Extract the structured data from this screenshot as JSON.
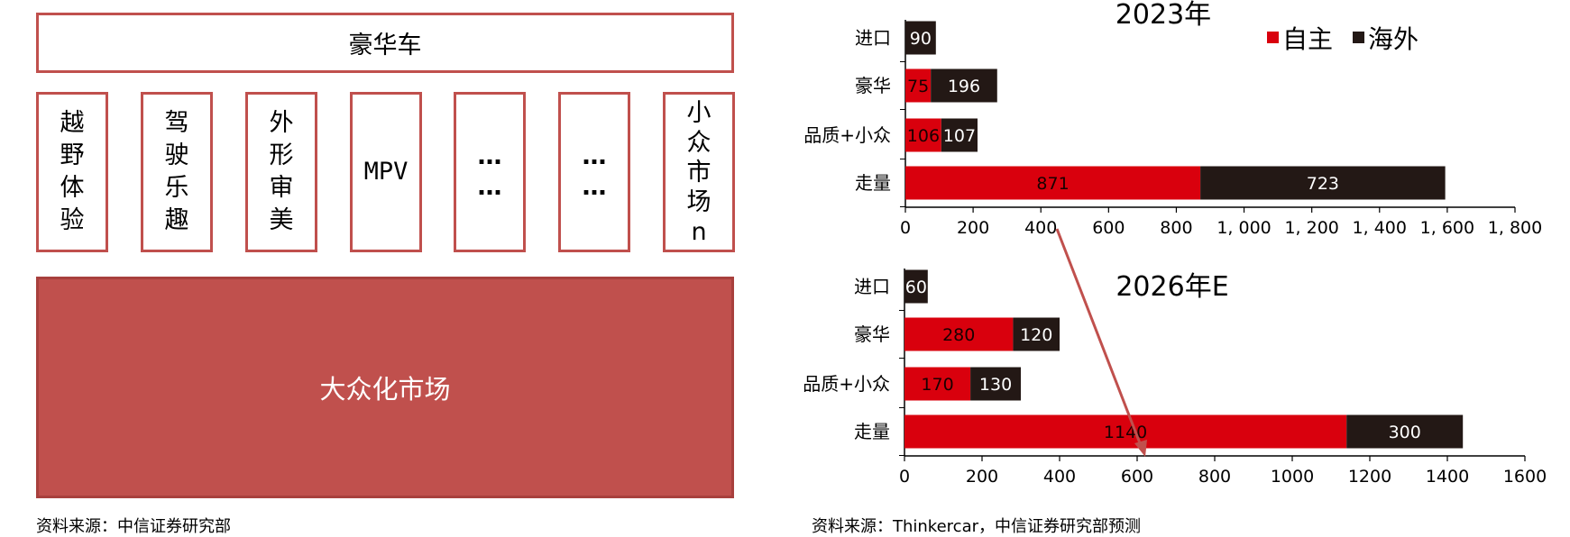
{
  "diagram": {
    "top_label": "豪华车",
    "columns": [
      "越野体验",
      "驾驶乐趣",
      "外形审美",
      "MPV",
      "……",
      "……",
      "小众市场n"
    ],
    "bottom_label": "大众化市场",
    "source": "资料来源：中信证券研究部"
  },
  "chart_source": "资料来源：Thinkercar，中信证券研究部预测",
  "chart_data": [
    {
      "type": "bar",
      "orientation": "horizontal",
      "stacked": true,
      "title": "2023年",
      "categories": [
        "进口",
        "豪华",
        "品质+小众",
        "走量"
      ],
      "series": [
        {
          "name": "自主",
          "color": "#d9000d",
          "values": [
            0,
            75,
            106,
            871
          ]
        },
        {
          "name": "海外",
          "color": "#231815",
          "values": [
            90,
            196,
            107,
            723
          ]
        }
      ],
      "xlim": [
        0,
        1800
      ],
      "xticks": [
        "0",
        "200",
        "400",
        "600",
        "800",
        "1, 000",
        "1, 200",
        "1, 400",
        "1, 600",
        "1, 800"
      ],
      "legend": "top-right"
    },
    {
      "type": "bar",
      "orientation": "horizontal",
      "stacked": true,
      "title": "2026年E",
      "categories": [
        "进口",
        "豪华",
        "品质+小众",
        "走量"
      ],
      "series": [
        {
          "name": "自主",
          "color": "#d9000d",
          "values": [
            0,
            280,
            170,
            1140
          ]
        },
        {
          "name": "海外",
          "color": "#231815",
          "values": [
            60,
            120,
            130,
            300
          ]
        }
      ],
      "xlim": [
        0,
        1600
      ],
      "xticks": [
        "0",
        "200",
        "400",
        "600",
        "800",
        "1000",
        "1200",
        "1400",
        "1600"
      ]
    }
  ]
}
